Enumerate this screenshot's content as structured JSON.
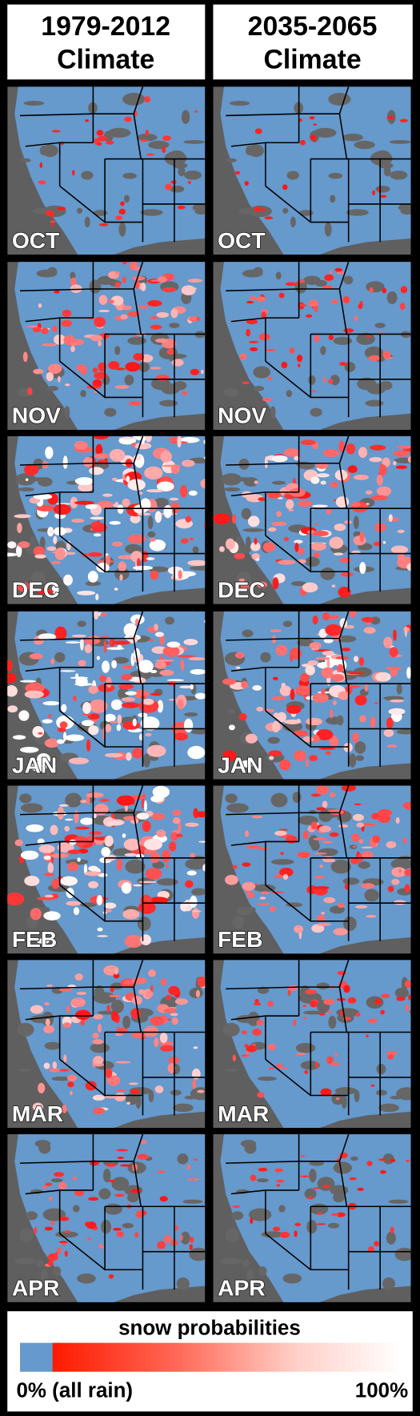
{
  "headers": [
    {
      "line1": "1979-2012",
      "line2": "Climate"
    },
    {
      "line1": "2035-2065",
      "line2": "Climate"
    }
  ],
  "months": [
    "OCT",
    "NOV",
    "DEC",
    "JAN",
    "FEB",
    "MAR",
    "APR"
  ],
  "legend": {
    "title": "snow probabilities",
    "min_label": "0% (all rain)",
    "max_label": "100%"
  }
}
